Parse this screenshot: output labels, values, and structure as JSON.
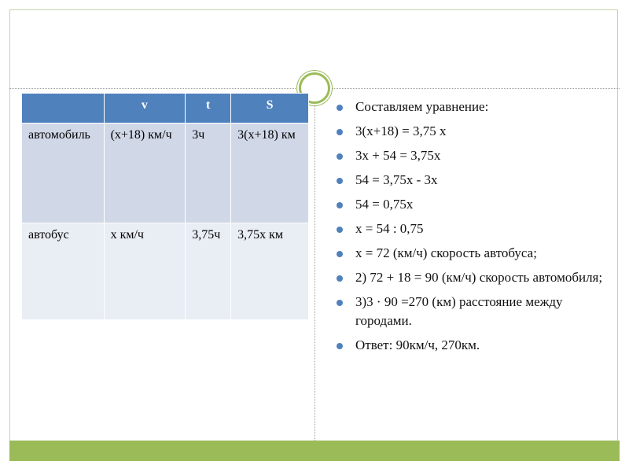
{
  "table": {
    "header": [
      "",
      "v",
      "t",
      "S"
    ],
    "rows": [
      [
        "автомобиль",
        "(x+18) км/ч",
        "3ч",
        "3(x+18) км"
      ],
      [
        "автобус",
        "x км/ч",
        "3,75ч",
        "3,75x км"
      ]
    ]
  },
  "bullets": [
    "Составляем  уравнение:",
    "3(x+18) = 3,75 x",
    "3x + 54 = 3,75x",
    "54 = 3,75x  -  3x",
    "54 = 0,75x",
    "x = 54 : 0,75",
    "x = 72 (км/ч) скорость автобуса;",
    "2) 72 + 18 = 90 (км/ч) скорость автомобиля;",
    "3)3 · 90 =270 (км) расстояние между городами.",
    "Ответ:   90км/ч,  270км."
  ]
}
